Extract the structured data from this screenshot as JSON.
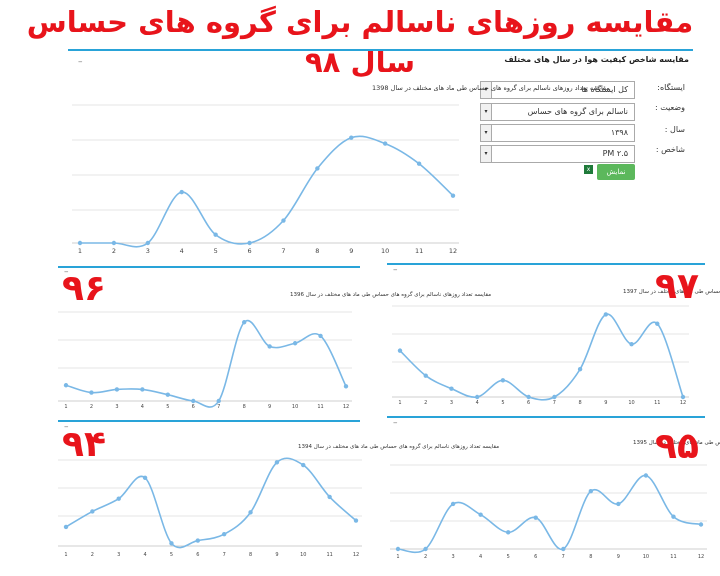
{
  "page_title": "مقایسه روزهای ناسالم برای گروه های حساس سال ۹۸",
  "main_panel": {
    "header": "مقایسه شاخص کیفیت هوا در سال های مختلف",
    "form": {
      "station_label": "ایستگاه:",
      "station_value": "کل ایستگاه ها",
      "status_label": "وضعیت :",
      "status_value": "ناسالم برای گروه های حساس",
      "year_label": "سال :",
      "year_value": "۱۳۹۸",
      "index_label": "شاخص :",
      "index_value": "PM ۲.۵",
      "show_button": "نمایش"
    }
  },
  "year_tags": {
    "y96": "۹۶",
    "y97": "۹۷",
    "y94": "۹۴",
    "y95": "۹۵"
  },
  "colors": {
    "title": "#e8141b",
    "line": "#7ab8e6",
    "accent": "#29a3d8",
    "grid": "#e6e6e6"
  },
  "chart_data": [
    {
      "id": "c1398",
      "type": "line",
      "title": "مقایسه تعداد روزهای ناسالم برای گروه های حساس طی ماد های مختلف در سال 1398",
      "x": [
        1,
        2,
        3,
        4,
        5,
        6,
        7,
        8,
        9,
        10,
        11,
        12
      ],
      "values": [
        0,
        0,
        0,
        4.3,
        0.7,
        0,
        1.9,
        6.3,
        8.9,
        8.4,
        6.7,
        4.0
      ],
      "ylim": [
        0,
        12
      ]
    },
    {
      "id": "c1396",
      "type": "line",
      "title": "مقایسه تعداد روزهای ناسالم برای گروه های حساس طی ماد های مختلف در سال 1396",
      "x": [
        1,
        2,
        3,
        4,
        5,
        6,
        7,
        8,
        9,
        10,
        11,
        12
      ],
      "values": [
        1.5,
        0.8,
        1.1,
        1.1,
        0.6,
        0,
        0,
        7.5,
        5.2,
        5.5,
        6.2,
        1.4
      ],
      "ylim": [
        0,
        10
      ]
    },
    {
      "id": "c1397",
      "type": "line",
      "title": "مقایسه تعداد روزهای ناسالم برای گروه های حساس طی ماد های مختلف در سال 1397",
      "x": [
        1,
        2,
        3,
        4,
        5,
        6,
        7,
        8,
        9,
        10,
        11,
        12
      ],
      "values": [
        5,
        2.3,
        0.9,
        0,
        1.8,
        0,
        0,
        3,
        8.9,
        5.7,
        7.9,
        0
      ],
      "ylim": [
        0,
        11
      ]
    },
    {
      "id": "c1394",
      "type": "line",
      "title": "مقایسه تعداد روزهای ناسالم برای گروه های حساس طی ماد های مختلف در سال 1394",
      "x": [
        1,
        2,
        3,
        4,
        5,
        6,
        7,
        8,
        9,
        10,
        11,
        12
      ],
      "values": [
        2.1,
        3.8,
        5.2,
        7.5,
        0.3,
        0.6,
        1.3,
        3.7,
        9.2,
        8.9,
        5.4,
        2.8
      ],
      "ylim": [
        0,
        11
      ]
    },
    {
      "id": "c1395",
      "type": "line",
      "title": "مقایسه تعداد روزهای ناسالم برای گروه های حساس طی ماد های مختلف در سال 1395",
      "x": [
        1,
        2,
        3,
        4,
        5,
        6,
        7,
        8,
        9,
        10,
        11,
        12
      ],
      "values": [
        0,
        0,
        4.6,
        3.5,
        1.7,
        3.2,
        0,
        5.9,
        4.6,
        7.5,
        3.3,
        2.5
      ],
      "ylim": [
        0,
        10
      ]
    }
  ]
}
